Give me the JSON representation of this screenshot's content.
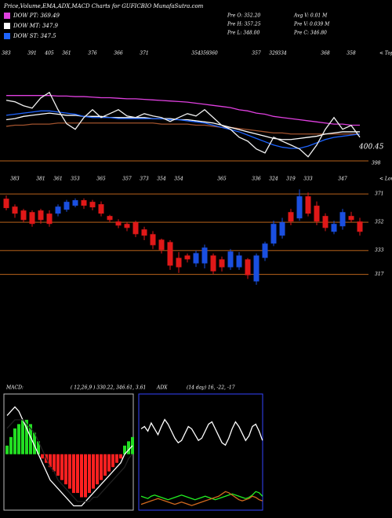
{
  "header": {
    "title": "Price,Volume,EMA,ADX,MACD Charts for GUFICBIO MunafaSutra.com",
    "stats": [
      "Pre O: 352.20",
      "Avg V: 0.01 M",
      "Pre H: 357.25",
      "Pre V: 0.039 M",
      "Pre L: 348.00",
      "Pre C: 346.80"
    ]
  },
  "chart_data": [
    {
      "type": "line",
      "label": "< Tops",
      "categories": [
        "383",
        null,
        null,
        "391",
        null,
        "405",
        null,
        "361",
        null,
        null,
        "376",
        null,
        null,
        "366",
        null,
        null,
        "371",
        null,
        null,
        null,
        null,
        null,
        "354",
        "359",
        "360",
        null,
        null,
        null,
        null,
        "357",
        null,
        "329",
        "334",
        null,
        null,
        null,
        null,
        "368",
        null,
        null,
        "358",
        null
      ],
      "ylim": [
        305,
        412
      ],
      "annotations": [
        "400.45",
        "398"
      ],
      "series": [
        {
          "color": "#a0522d",
          "values": [
            340,
            341,
            341,
            342,
            342,
            342,
            343,
            343,
            343,
            343,
            343,
            343,
            343,
            343,
            343,
            343,
            343,
            343,
            342,
            342,
            342,
            342,
            341,
            341,
            340,
            339,
            339,
            338,
            337,
            336,
            335,
            334,
            334,
            333,
            333,
            333,
            333,
            333,
            333,
            333,
            333,
            333
          ]
        },
        {
          "name": "DOW PT: 369.49",
          "color": "#e040e0",
          "values": [
            368,
            368,
            368,
            368,
            368,
            368,
            367.5,
            367.5,
            367,
            367,
            366.5,
            366,
            366,
            365.5,
            365,
            365,
            364.5,
            364,
            363.5,
            363,
            362.5,
            362,
            361,
            360,
            359,
            358,
            357,
            355,
            354,
            352,
            351,
            349,
            348,
            347,
            346,
            345,
            344,
            343,
            342,
            342,
            341,
            341
          ]
        },
        {
          "name": "DOW MT: 347.9",
          "color": "#ffffff",
          "values": [
            346,
            347,
            349,
            350,
            351,
            352,
            351,
            350,
            350,
            349,
            349,
            349,
            348,
            348,
            348,
            348,
            348,
            347,
            347,
            347,
            346,
            346,
            345,
            344,
            343,
            341,
            339,
            337,
            335,
            333,
            331,
            329,
            328,
            328,
            329,
            330,
            331,
            333,
            334,
            335,
            335,
            335
          ]
        },
        {
          "name": "DOW ST: 347.5",
          "color": "#1e64ff",
          "values": [
            350,
            351,
            352,
            353,
            354,
            354,
            353,
            352,
            351,
            349,
            348,
            348,
            348,
            347,
            347,
            347,
            347,
            347,
            347,
            346,
            346,
            345,
            344,
            343,
            341,
            339,
            337,
            335,
            332,
            329,
            326,
            323,
            321,
            320,
            320,
            322,
            325,
            328,
            330,
            331,
            332,
            333
          ]
        },
        {
          "color": "#f0f0f0",
          "values": [
            363.7,
            362.3,
            358.7,
            356.5,
            365.8,
            370.8,
            355.1,
            342.3,
            337.3,
            348,
            355.1,
            348,
            351.5,
            355.1,
            349.4,
            348,
            351.5,
            349.4,
            348,
            344.4,
            348,
            351.5,
            349.4,
            355.1,
            348,
            340.8,
            337.3,
            330.1,
            326.5,
            319.4,
            315.8,
            330.1,
            326.5,
            323,
            319.4,
            312.3,
            323,
            337.3,
            348,
            337.3,
            340.8,
            330.1
          ]
        }
      ]
    },
    {
      "type": "candlestick",
      "label": "< Lows",
      "categories": [
        null,
        "383",
        null,
        null,
        "381",
        null,
        "361",
        null,
        "353",
        null,
        null,
        "365",
        null,
        null,
        "357",
        null,
        "373",
        null,
        "354",
        null,
        "354",
        null,
        null,
        null,
        null,
        "365",
        null,
        null,
        null,
        "336",
        null,
        "324",
        null,
        "319",
        null,
        "333",
        null,
        null,
        null,
        "347",
        null,
        null
      ],
      "ylim": [
        301,
        380
      ],
      "yticks": [
        371,
        352,
        333,
        317
      ],
      "up_color": "#1a4fe0",
      "down_color": "#e01818",
      "open": [
        367.8,
        362.5,
        359.9,
        358.8,
        359.9,
        357.8,
        357.8,
        360.4,
        363.1,
        366.8,
        365.7,
        364.1,
        356.2,
        352.5,
        350.9,
        352,
        347.2,
        344,
        340.3,
        338.7,
        328.1,
        329.7,
        324.4,
        324.4,
        329.7,
        327.1,
        321.8,
        321.8,
        327.1,
        312.3,
        328.1,
        337.7,
        343,
        358.8,
        354.6,
        369.4,
        363.1,
        356.2,
        345.6,
        349.3,
        356.2,
        352.5
      ],
      "high": [
        370,
        364,
        361,
        360,
        361,
        360,
        364,
        367,
        368,
        368,
        367,
        366,
        357,
        354,
        352,
        353,
        349,
        346,
        341,
        340,
        332,
        331,
        333,
        337,
        331,
        329,
        334,
        332,
        328,
        331,
        339,
        353,
        355,
        361,
        374,
        372,
        366,
        358,
        353,
        361,
        359,
        355
      ],
      "low": [
        360,
        355,
        352,
        349,
        351,
        349,
        356,
        359,
        362,
        361,
        360,
        356,
        352,
        348,
        346,
        342,
        340,
        334,
        331,
        320,
        318,
        325,
        322,
        321,
        317,
        319,
        320,
        320,
        314,
        310,
        326,
        336,
        341,
        350,
        353,
        356,
        350,
        346,
        344,
        347,
        352,
        343
      ],
      "close": [
        361.5,
        357.8,
        353.5,
        350.9,
        353.5,
        350.9,
        362.5,
        365.7,
        366.8,
        363.1,
        362,
        357.8,
        353.5,
        349.8,
        348.2,
        344,
        343,
        336.6,
        333.4,
        322.9,
        321.8,
        327.1,
        331.3,
        335,
        319.1,
        321.8,
        332.4,
        329.7,
        316.5,
        329.7,
        337.7,
        350.9,
        352,
        352.5,
        369.4,
        357.8,
        352.5,
        348.2,
        350.9,
        358.8,
        353.5,
        345.6
      ]
    },
    {
      "type": "macd",
      "title": "MACD:",
      "params": "( 12,26,9 ) 330.22, 346.61, 3.61",
      "ylim": [
        -13,
        14
      ],
      "up_color": "#22dd22",
      "down_color": "#ff2020",
      "values": [
        2,
        4,
        6,
        7,
        8,
        8,
        7,
        5,
        3,
        -1,
        -2,
        -3,
        -4,
        -5,
        -6,
        -7,
        -8,
        -9,
        -9,
        -10,
        -10,
        -9,
        -8,
        -7,
        -6,
        -5,
        -4,
        -3,
        -2,
        -1,
        2,
        3,
        4
      ],
      "series": [
        {
          "color": "#ffffff",
          "values": [
            9,
            10,
            11,
            10,
            8,
            6,
            4,
            2,
            0,
            -2,
            -4,
            -6,
            -7,
            -8,
            -9,
            -10,
            -11,
            -12,
            -12,
            -12,
            -11,
            -10,
            -9,
            -8,
            -7,
            -6,
            -5,
            -4,
            -3,
            -2,
            0,
            1,
            2
          ]
        },
        {
          "color": "#222222",
          "values": [
            6,
            7,
            8,
            8,
            8,
            7,
            6,
            5,
            3,
            1,
            -1,
            -3,
            -4,
            -6,
            -7,
            -8,
            -9,
            -10,
            -11,
            -11,
            -11,
            -11,
            -10,
            -10,
            -9,
            -8,
            -7,
            -6,
            -5,
            -4,
            -3,
            -1,
            0
          ]
        }
      ]
    },
    {
      "type": "line",
      "title": "ADX",
      "params": "(14 day) 16, -22, -17",
      "ylim": [
        0,
        100
      ],
      "series": [
        {
          "color": "#ffffff",
          "values": [
            70,
            72,
            68,
            75,
            70,
            65,
            72,
            78,
            74,
            68,
            62,
            58,
            60,
            66,
            72,
            70,
            65,
            60,
            62,
            68,
            74,
            76,
            70,
            64,
            58,
            56,
            62,
            70,
            76,
            72,
            66,
            60,
            64,
            72,
            74,
            68,
            60
          ]
        },
        {
          "color": "#22ee22",
          "values": [
            12,
            11,
            10,
            12,
            13,
            12,
            11,
            10,
            9,
            10,
            11,
            12,
            13,
            12,
            11,
            10,
            9,
            10,
            11,
            12,
            11,
            10,
            9,
            10,
            11,
            12,
            13,
            14,
            13,
            12,
            11,
            10,
            11,
            13,
            16,
            15,
            12
          ]
        },
        {
          "color": "#d2691e",
          "values": [
            5,
            6,
            7,
            8,
            9,
            10,
            9,
            8,
            7,
            6,
            5,
            6,
            7,
            6,
            5,
            4,
            5,
            6,
            7,
            8,
            9,
            10,
            11,
            12,
            14,
            16,
            15,
            13,
            11,
            9,
            8,
            9,
            10,
            12,
            11,
            9,
            8
          ]
        }
      ]
    }
  ]
}
